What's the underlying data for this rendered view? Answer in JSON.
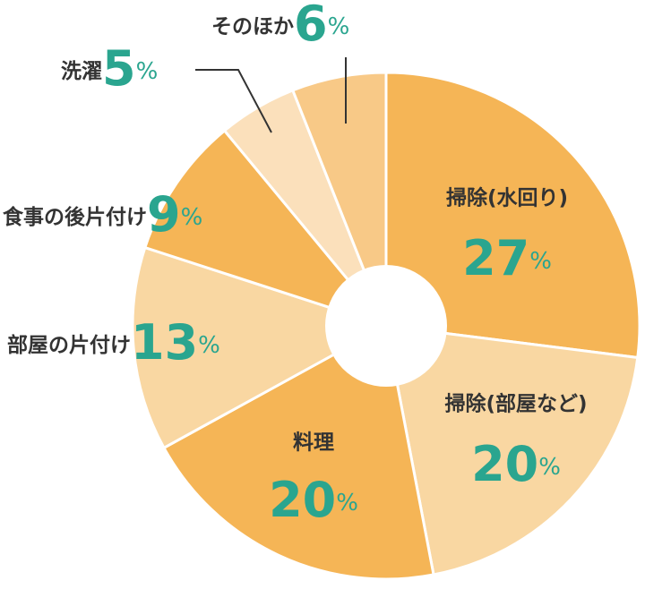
{
  "chart_data": {
    "type": "donut",
    "categories": [
      "掃除(水回り)",
      "掃除(部屋など)",
      "料理",
      "部屋の片付け",
      "食事の後片付け",
      "洗濯",
      "そのほか"
    ],
    "values": [
      27,
      20,
      20,
      13,
      9,
      5,
      6
    ],
    "unit": "%",
    "colors": [
      "#f5b556",
      "#f9d7a2",
      "#f5b556",
      "#f9d7a2",
      "#f5b556",
      "#fbe0bb",
      "#f8c987"
    ]
  }
}
